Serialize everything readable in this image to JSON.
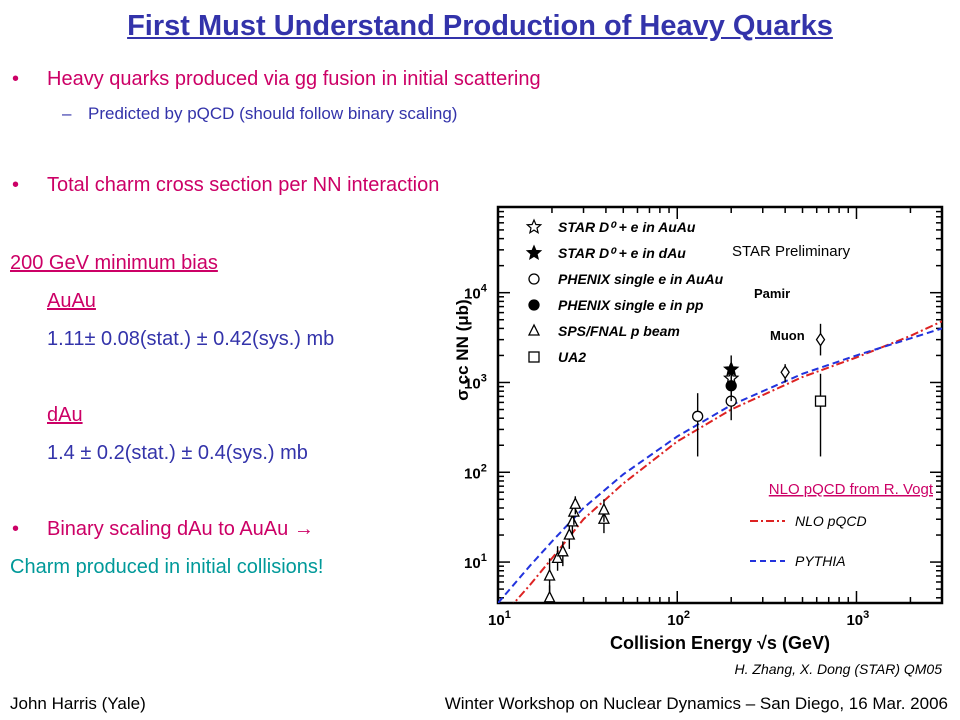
{
  "slide": {
    "title": "First Must Understand Production of Heavy Quarks",
    "bullet1": "Heavy quarks produced via gg fusion in initial scattering",
    "sub1_dash": "–",
    "sub1": "Predicted by pQCD (should follow binary scaling)",
    "bullet2": "Total charm cross section per NN interaction",
    "section": "200 GeV minimum bias",
    "auau_label": "AuAu",
    "auau_value": "1.11± 0.08(stat.) ± 0.42(sys.) mb",
    "dau_label": "dAu",
    "dau_value": "1.4 ± 0.2(stat.) ± 0.4(sys.) mb",
    "bullet3": "Binary scaling dAu to AuAu →",
    "conclusion": "Charm produced in initial collisions!",
    "bullet_glyph": "•",
    "footer_left": "John Harris (Yale)",
    "footer_right": "Winter Workshop on Nuclear Dynamics – San Diego, 16 Mar. 2006",
    "colors": {
      "title": "#3333aa",
      "magenta": "#cc0066",
      "blue": "#3333aa",
      "teal": "#009999"
    }
  },
  "chart_data": {
    "type": "scatter",
    "title": "",
    "xlabel": "Collision Energy √s (GeV)",
    "ylabel": "σ cc NN (μb)",
    "x_scale": "log",
    "y_scale": "log",
    "xlim": [
      10,
      3000
    ],
    "ylim": [
      3.5,
      90000
    ],
    "x_ticks": [
      {
        "value": 10,
        "mantissa": "10",
        "exp": "1"
      },
      {
        "value": 100,
        "mantissa": "10",
        "exp": "2"
      },
      {
        "value": 1000,
        "mantissa": "10",
        "exp": "3"
      }
    ],
    "y_ticks": [
      {
        "value": 10,
        "mantissa": "10",
        "exp": "1"
      },
      {
        "value": 100,
        "mantissa": "10",
        "exp": "2"
      },
      {
        "value": 1000,
        "mantissa": "10",
        "exp": "3"
      },
      {
        "value": 10000,
        "mantissa": "10",
        "exp": "4"
      }
    ],
    "annotations": {
      "preliminary": "STAR Preliminary",
      "pamir": "Pamir",
      "muon": "Muon",
      "nlo_source": "NLO pQCD from R. Vogt",
      "credit": "H. Zhang, X. Dong (STAR)  QM05"
    },
    "legend": [
      {
        "marker": "star-open",
        "label": "STAR D⁰ + e in AuAu"
      },
      {
        "marker": "star-filled",
        "label": "STAR D⁰ + e in dAu"
      },
      {
        "marker": "circle-open",
        "label": "PHENIX single e in AuAu"
      },
      {
        "marker": "circle-filled",
        "label": "PHENIX single e in pp"
      },
      {
        "marker": "triangle-open",
        "label": "SPS/FNAL p beam"
      },
      {
        "marker": "square-open",
        "label": "UA2"
      }
    ],
    "curves_legend": [
      {
        "style": "dashdot",
        "color": "#dd2222",
        "label": "NLO pQCD"
      },
      {
        "style": "dashed",
        "color": "#2233dd",
        "label": "PYTHIA"
      }
    ],
    "series": [
      {
        "name": "STAR D⁰ + e in AuAu",
        "marker": "star-open",
        "points": [
          {
            "x": 200,
            "y": 1110,
            "ylo": 720,
            "yhi": 1600
          }
        ]
      },
      {
        "name": "STAR D⁰ + e in dAu",
        "marker": "star-filled",
        "points": [
          {
            "x": 200,
            "y": 1400,
            "ylo": 880,
            "yhi": 2000
          }
        ]
      },
      {
        "name": "PHENIX single e in AuAu",
        "marker": "circle-open",
        "points": [
          {
            "x": 130,
            "y": 420,
            "ylo": 150,
            "yhi": 760
          },
          {
            "x": 200,
            "y": 620,
            "ylo": 380,
            "yhi": 900
          }
        ]
      },
      {
        "name": "PHENIX single e in pp",
        "marker": "circle-filled",
        "points": [
          {
            "x": 200,
            "y": 920,
            "ylo": 620,
            "yhi": 1250
          }
        ]
      },
      {
        "name": "SPS/FNAL p beam",
        "marker": "triangle-open",
        "points": [
          {
            "x": 19.4,
            "y": 7.0,
            "ylo": 4.0,
            "yhi": 11
          },
          {
            "x": 19.4,
            "y": 4.0,
            "ylo": 3.5,
            "yhi": 5.5
          },
          {
            "x": 21.5,
            "y": 11,
            "ylo": 8,
            "yhi": 15
          },
          {
            "x": 23,
            "y": 13,
            "ylo": 9,
            "yhi": 17
          },
          {
            "x": 25,
            "y": 20,
            "ylo": 14,
            "yhi": 27
          },
          {
            "x": 26,
            "y": 28,
            "ylo": 20,
            "yhi": 36
          },
          {
            "x": 26.5,
            "y": 36,
            "ylo": 26,
            "yhi": 46
          },
          {
            "x": 27,
            "y": 44,
            "ylo": 34,
            "yhi": 54
          },
          {
            "x": 39,
            "y": 30,
            "ylo": 21,
            "yhi": 42
          },
          {
            "x": 39,
            "y": 38,
            "ylo": 28,
            "yhi": 50
          }
        ]
      },
      {
        "name": "UA2",
        "marker": "square-open",
        "points": [
          {
            "x": 630,
            "y": 620,
            "ylo": 150,
            "yhi": 1250
          }
        ]
      },
      {
        "name": "Pamir",
        "marker": "diamond-open",
        "points": [
          {
            "x": 630,
            "y": 3000,
            "ylo": 2000,
            "yhi": 4500
          }
        ]
      },
      {
        "name": "Muon",
        "marker": "diamond-open",
        "points": [
          {
            "x": 400,
            "y": 1300,
            "ylo": 1000,
            "yhi": 1600
          }
        ]
      }
    ],
    "curves": [
      {
        "name": "NLO pQCD",
        "style": "dashdot",
        "color": "#dd2222",
        "points": [
          [
            10,
            2.2
          ],
          [
            15,
            5.5
          ],
          [
            20,
            11
          ],
          [
            30,
            30
          ],
          [
            50,
            75
          ],
          [
            100,
            220
          ],
          [
            200,
            500
          ],
          [
            500,
            1150
          ],
          [
            1000,
            1900
          ],
          [
            2000,
            3300
          ],
          [
            3000,
            4800
          ]
        ]
      },
      {
        "name": "PYTHIA",
        "style": "dashed",
        "color": "#2233dd",
        "points": [
          [
            10,
            3.5
          ],
          [
            15,
            9
          ],
          [
            20,
            17
          ],
          [
            30,
            40
          ],
          [
            50,
            95
          ],
          [
            100,
            250
          ],
          [
            200,
            560
          ],
          [
            500,
            1250
          ],
          [
            1000,
            2000
          ],
          [
            2000,
            3100
          ],
          [
            3000,
            4000
          ]
        ]
      }
    ]
  }
}
